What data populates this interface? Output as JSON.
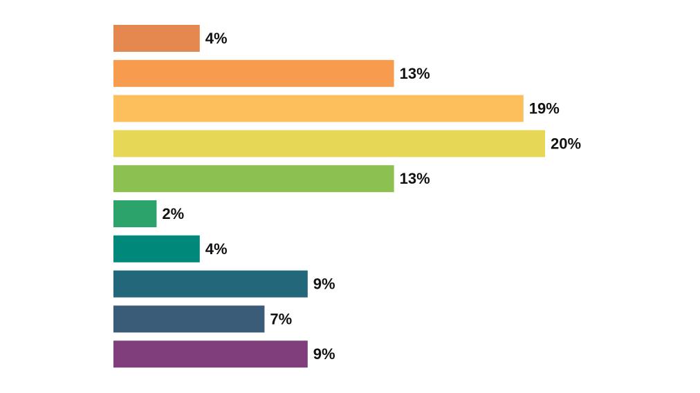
{
  "chart_data": {
    "type": "bar",
    "orientation": "horizontal",
    "title": "",
    "xlabel": "",
    "ylabel": "",
    "grid": false,
    "value_suffix": "%",
    "xlim": [
      0,
      20
    ],
    "categories": [
      "",
      "",
      "",
      "",
      "",
      "",
      "",
      "",
      "",
      ""
    ],
    "values": [
      4,
      13,
      19,
      20,
      13,
      2,
      4,
      9,
      7,
      9
    ],
    "labels": [
      "4%",
      "13%",
      "19%",
      "20%",
      "13%",
      "2%",
      "4%",
      "9%",
      "7%",
      "9%"
    ],
    "colors": [
      "#E5884F",
      "#F79C4E",
      "#FDBE5C",
      "#E6D856",
      "#8CC152",
      "#2BA36A",
      "#00897B",
      "#22677A",
      "#3B5C78",
      "#803F7C"
    ]
  }
}
